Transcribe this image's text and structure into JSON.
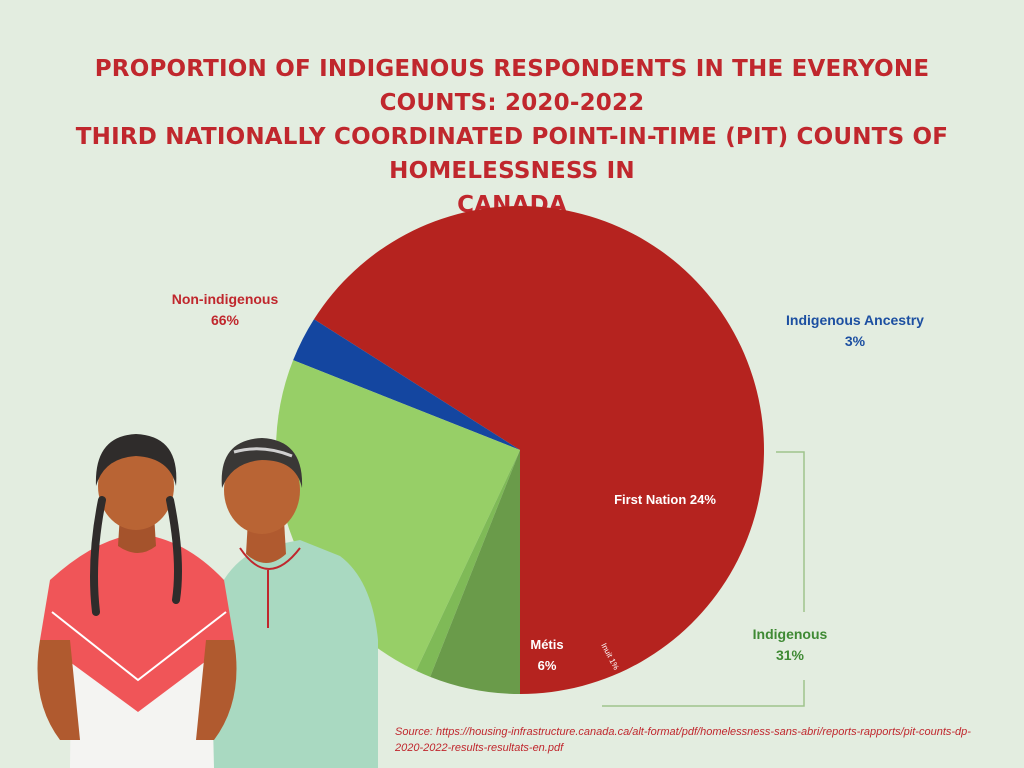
{
  "title_lines": [
    "PROPORTION OF INDIGENOUS RESPONDENTS IN THE EVERYONE COUNTS: 2020-2022",
    "THIRD NATIONALLY COORDINATED POINT-IN-TIME (PIT) COUNTS OF HOMELESSNESS IN",
    "CANADA"
  ],
  "labels": {
    "non_indigenous": {
      "name": "Non-indigenous",
      "value": "66%"
    },
    "ancestry": {
      "name": "Indigenous Ancestry",
      "value": "3%"
    },
    "first_nation": "First Nation 24%",
    "metis": {
      "name": "Métis",
      "value": "6%"
    },
    "inuit": "Inuit 1%",
    "indigenous_group": {
      "name": "Indigenous",
      "value": "31%"
    }
  },
  "source": "Source: https://housing-infrastructure.canada.ca/alt-format/pdf/homelessness-sans-abri/reports-rapports/pit-counts-dp-2020-2022-results-resultats-en.pdf",
  "colors": {
    "background": "#e3ede0",
    "title": "#c0272d",
    "non_indigenous": "#b5231f",
    "ancestry": "#1446a0",
    "first_nation": "#97cf67",
    "inuit": "#7fba57",
    "metis": "#6a9b4a",
    "bracket": "#9fc48c"
  },
  "chart_data": {
    "type": "pie",
    "title": "PROPORTION OF INDIGENOUS RESPONDENTS IN THE EVERYONE COUNTS: 2020-2022 THIRD NATIONALLY COORDINATED POINT-IN-TIME (PIT) COUNTS OF HOMELESSNESS IN CANADA",
    "slices": [
      {
        "label": "Non-indigenous",
        "value": 66
      },
      {
        "label": "Indigenous Ancestry",
        "value": 3
      },
      {
        "label": "First Nation",
        "value": 24
      },
      {
        "label": "Inuit",
        "value": 1
      },
      {
        "label": "Métis",
        "value": 6
      }
    ],
    "groups": [
      {
        "label": "Indigenous",
        "value": 31,
        "members": [
          "First Nation",
          "Inuit",
          "Métis"
        ]
      }
    ]
  }
}
